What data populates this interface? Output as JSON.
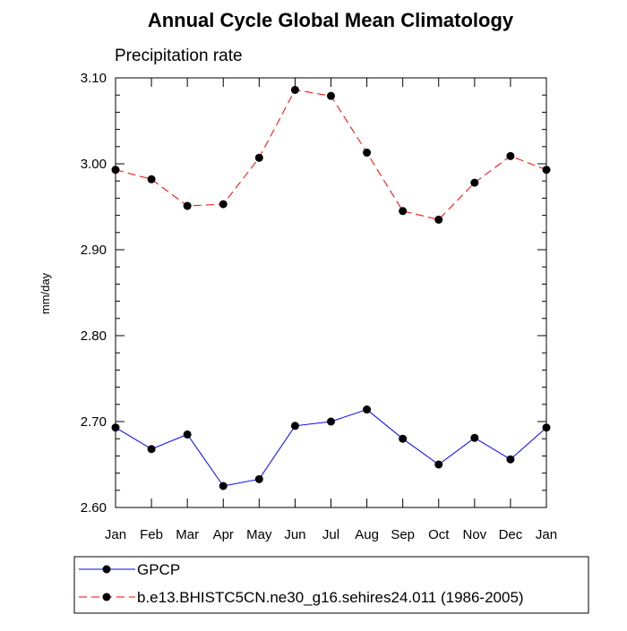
{
  "chart_data": {
    "type": "line",
    "title": "Annual Cycle Global Mean Climatology",
    "subtitle": "Precipitation rate",
    "xlabel": "",
    "ylabel": "mm/day",
    "categories": [
      "Jan",
      "Feb",
      "Mar",
      "Apr",
      "May",
      "Jun",
      "Jul",
      "Aug",
      "Sep",
      "Oct",
      "Nov",
      "Dec",
      "Jan"
    ],
    "ylim": [
      2.6,
      3.1
    ],
    "yticks": [
      "2.60",
      "2.70",
      "2.80",
      "2.90",
      "3.00",
      "3.10"
    ],
    "grid": false,
    "legend_position": "bottom",
    "series": [
      {
        "name": "GPCP",
        "color": "#0000ff",
        "line_style": "solid",
        "marker": "filled-circle",
        "values": [
          2.693,
          2.668,
          2.685,
          2.625,
          2.633,
          2.695,
          2.7,
          2.714,
          2.68,
          2.65,
          2.681,
          2.656,
          2.693
        ]
      },
      {
        "name": "b.e13.BHISTC5CN.ne30_g16.sehires24.011 (1986-2005)",
        "color": "#ff0000",
        "line_style": "dashed",
        "marker": "filled-circle",
        "values": [
          2.993,
          2.982,
          2.951,
          2.953,
          3.007,
          3.086,
          3.079,
          3.013,
          2.945,
          2.935,
          2.978,
          3.009,
          2.993
        ]
      }
    ]
  }
}
